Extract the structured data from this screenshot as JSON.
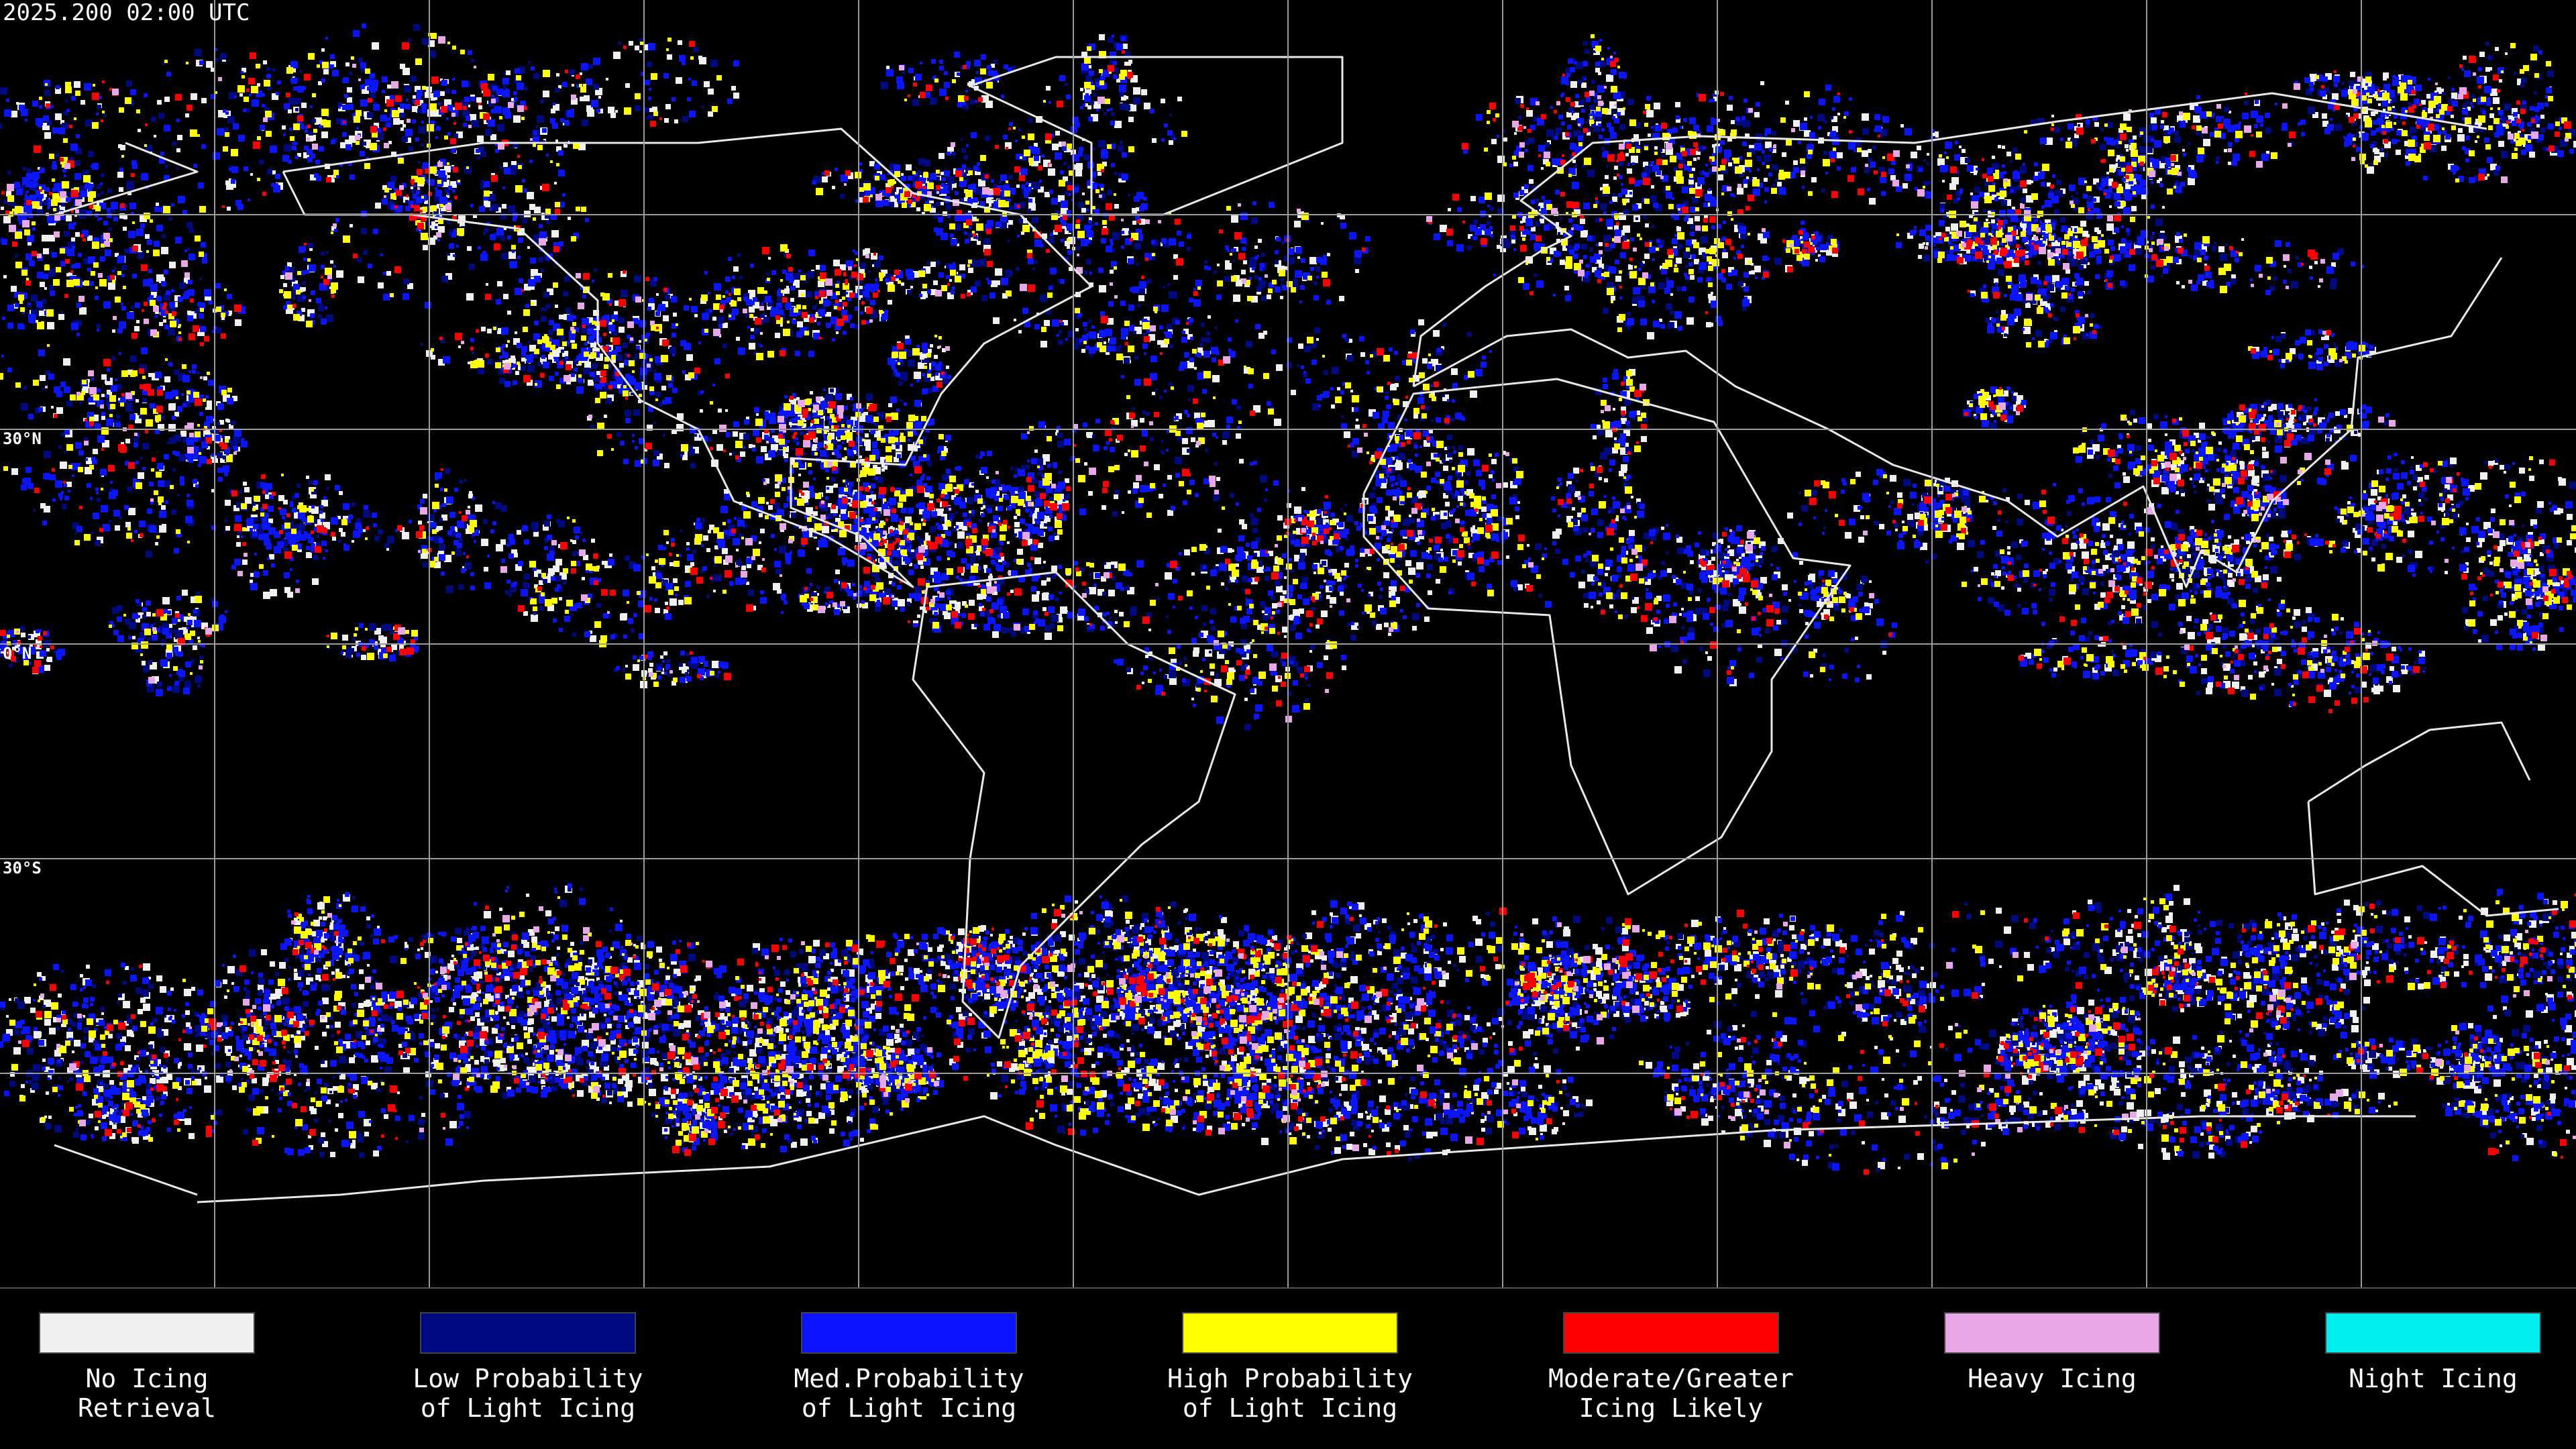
{
  "header": {
    "timestamp": "2025.200 02:00 UTC"
  },
  "latitude_labels": [
    "30°N",
    "0°N",
    "30°S"
  ],
  "legend": [
    {
      "lines": [
        "No Icing",
        "Retrieval"
      ],
      "color": "#f0f0f0"
    },
    {
      "lines": [
        "Low Probability",
        "of Light Icing"
      ],
      "color": "#000a80"
    },
    {
      "lines": [
        "Med.Probability",
        "of Light Icing"
      ],
      "color": "#0a14ff"
    },
    {
      "lines": [
        "High Probability",
        "of Light Icing"
      ],
      "color": "#ffff00"
    },
    {
      "lines": [
        "Moderate/Greater",
        "Icing Likely"
      ],
      "color": "#ff0000"
    },
    {
      "lines": [
        "Heavy Icing"
      ],
      "color": "#e8a8e8"
    },
    {
      "lines": [
        "Night Icing"
      ],
      "color": "#00f0f0"
    }
  ]
}
